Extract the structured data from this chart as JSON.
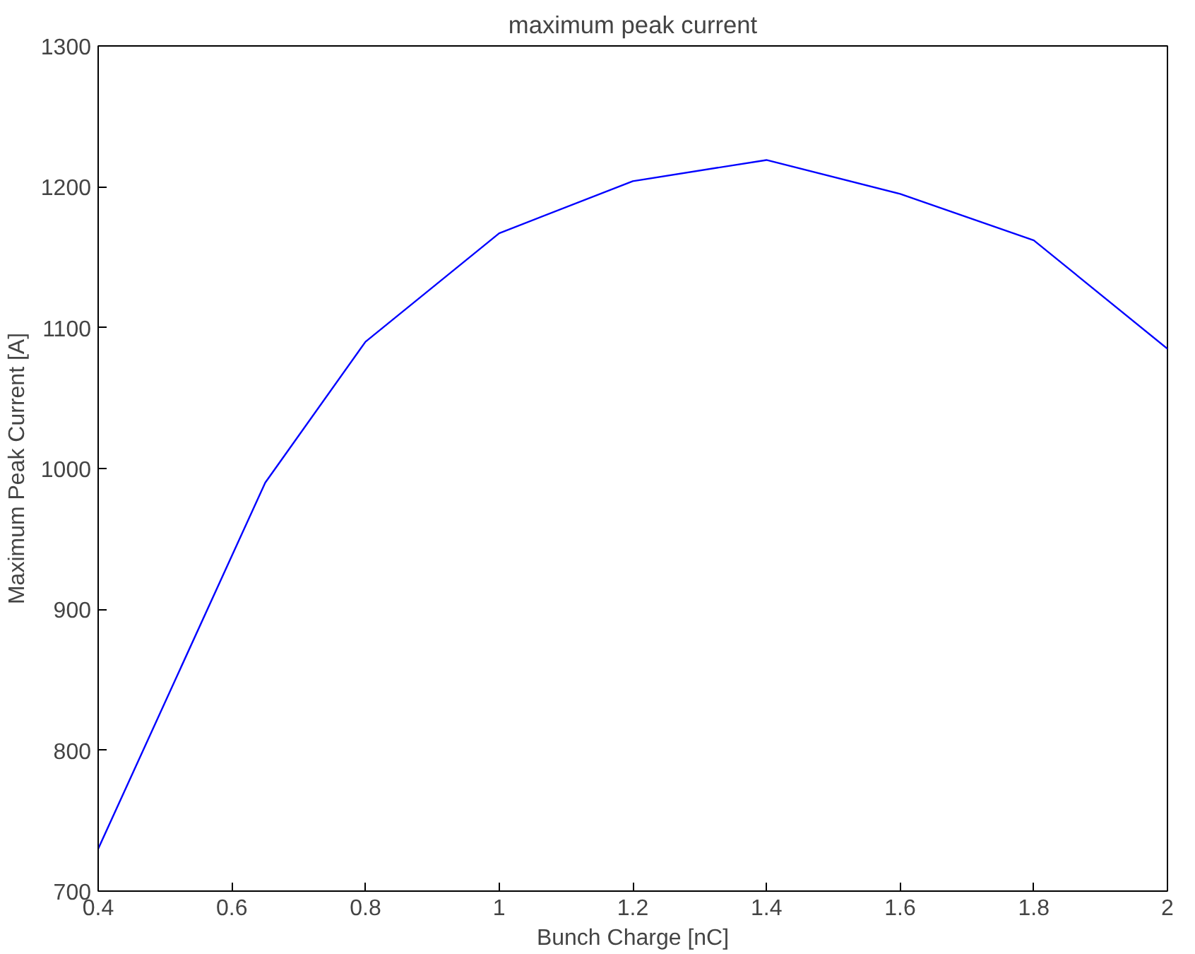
{
  "chart_data": {
    "type": "line",
    "title": "maximum peak current",
    "xlabel": "Bunch Charge [nC]",
    "ylabel": "Maximum Peak Current [A]",
    "x": [
      0.4,
      0.65,
      0.8,
      1.0,
      1.2,
      1.4,
      1.6,
      1.8,
      2.0
    ],
    "series": [
      {
        "color": "#0000ff",
        "values": [
          730,
          990,
          1090,
          1167,
          1204,
          1219,
          1195,
          1162,
          1085
        ]
      }
    ],
    "xlim": [
      0.4,
      2
    ],
    "ylim": [
      700,
      1300
    ],
    "xticks": [
      0.4,
      0.6,
      0.8,
      1,
      1.2,
      1.4,
      1.6,
      1.8,
      2
    ],
    "yticks": [
      700,
      800,
      900,
      1000,
      1100,
      1200,
      1300
    ],
    "grid": false,
    "marker": "none",
    "line_style": "solid"
  }
}
